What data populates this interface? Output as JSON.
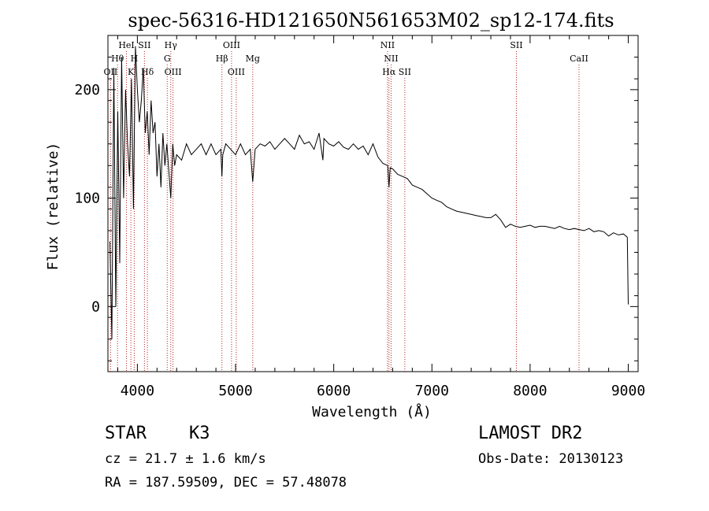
{
  "chart_data": {
    "type": "line",
    "title": "spec-56316-HD121650N561653M02_sp12-174.fits",
    "xlabel": "Wavelength (Å)",
    "ylabel": "Flux (relative)",
    "xlim": [
      3700,
      9100
    ],
    "ylim": [
      -60,
      250
    ],
    "x_ticks": [
      4000,
      5000,
      6000,
      7000,
      8000,
      9000
    ],
    "y_ticks": [
      0,
      100,
      200
    ],
    "grid": false,
    "line_color": "#000000",
    "marker_color": "#b22222",
    "spectrum": {
      "x": [
        3720,
        3740,
        3760,
        3780,
        3800,
        3820,
        3840,
        3860,
        3880,
        3900,
        3920,
        3940,
        3960,
        3980,
        4000,
        4020,
        4040,
        4060,
        4080,
        4100,
        4120,
        4140,
        4160,
        4180,
        4200,
        4220,
        4240,
        4260,
        4280,
        4300,
        4320,
        4340,
        4360,
        4380,
        4400,
        4450,
        4500,
        4550,
        4600,
        4650,
        4700,
        4750,
        4800,
        4850,
        4861,
        4870,
        4900,
        4950,
        5000,
        5050,
        5100,
        5150,
        5175,
        5200,
        5250,
        5300,
        5350,
        5400,
        5450,
        5500,
        5550,
        5600,
        5650,
        5700,
        5750,
        5800,
        5850,
        5890,
        5900,
        5950,
        6000,
        6050,
        6100,
        6150,
        6200,
        6250,
        6300,
        6350,
        6400,
        6450,
        6500,
        6550,
        6563,
        6575,
        6600,
        6650,
        6700,
        6750,
        6800,
        6850,
        6900,
        6950,
        7000,
        7050,
        7100,
        7150,
        7200,
        7250,
        7300,
        7350,
        7400,
        7450,
        7500,
        7550,
        7600,
        7650,
        7700,
        7750,
        7800,
        7850,
        7900,
        7950,
        8000,
        8050,
        8100,
        8150,
        8200,
        8250,
        8300,
        8350,
        8400,
        8450,
        8500,
        8550,
        8600,
        8650,
        8700,
        8750,
        8800,
        8850,
        8900,
        8950,
        8990,
        9000
      ],
      "y": [
        60,
        -30,
        220,
        0,
        180,
        40,
        230,
        100,
        200,
        150,
        120,
        210,
        90,
        240,
        200,
        170,
        190,
        220,
        160,
        180,
        140,
        190,
        160,
        170,
        120,
        150,
        110,
        160,
        130,
        150,
        125,
        100,
        150,
        130,
        140,
        135,
        150,
        140,
        145,
        150,
        140,
        150,
        140,
        145,
        120,
        140,
        150,
        145,
        140,
        150,
        140,
        145,
        115,
        145,
        150,
        148,
        152,
        145,
        150,
        155,
        150,
        145,
        158,
        150,
        152,
        145,
        160,
        135,
        155,
        150,
        148,
        152,
        147,
        145,
        150,
        145,
        148,
        140,
        150,
        138,
        132,
        130,
        110,
        128,
        127,
        122,
        120,
        118,
        112,
        110,
        108,
        104,
        100,
        98,
        96,
        92,
        90,
        88,
        87,
        86,
        85,
        84,
        83,
        82,
        82,
        85,
        80,
        73,
        76,
        74,
        73,
        74,
        75,
        73,
        74,
        74,
        73,
        72,
        74,
        72,
        71,
        72,
        71,
        70,
        72,
        69,
        70,
        69,
        65,
        68,
        66,
        67,
        64,
        2
      ]
    },
    "lines": [
      {
        "label": "OII",
        "x": 3727,
        "row": 3
      },
      {
        "label": "Hθ",
        "x": 3798,
        "row": 2
      },
      {
        "label": "HeI",
        "x": 3889,
        "row": 1
      },
      {
        "label": "K",
        "x": 3934,
        "row": 3
      },
      {
        "label": "H",
        "x": 3968,
        "row": 2
      },
      {
        "label": "SII",
        "x": 4072,
        "row": 1
      },
      {
        "label": "Hδ",
        "x": 4102,
        "row": 3
      },
      {
        "label": "Hγ",
        "x": 4340,
        "row": 1
      },
      {
        "label": "G",
        "x": 4304,
        "row": 2
      },
      {
        "label": "OIII",
        "x": 4363,
        "row": 3
      },
      {
        "label": "Hβ",
        "x": 4861,
        "row": 2
      },
      {
        "label": "OIII",
        "x": 4959,
        "row": 1
      },
      {
        "label": "OIII",
        "x": 5007,
        "row": 3
      },
      {
        "label": "Mg",
        "x": 5175,
        "row": 2
      },
      {
        "label": "NII",
        "x": 6548,
        "row": 1
      },
      {
        "label": "NII",
        "x": 6584,
        "row": 2
      },
      {
        "label": "Hα",
        "x": 6563,
        "row": 3
      },
      {
        "label": "SII",
        "x": 6724,
        "row": 3
      },
      {
        "label": "SII",
        "x": 7860,
        "row": 1
      },
      {
        "label": "CaII",
        "x": 8498,
        "row": 2
      }
    ]
  },
  "info": {
    "class": "STAR",
    "subclass": "K3",
    "cz": "cz = 21.7 ± 1.6 km/s",
    "radec": "RA = 187.59509, DEC =  57.48078",
    "survey": "LAMOST DR2",
    "obs_date": "Obs-Date: 20130123"
  }
}
